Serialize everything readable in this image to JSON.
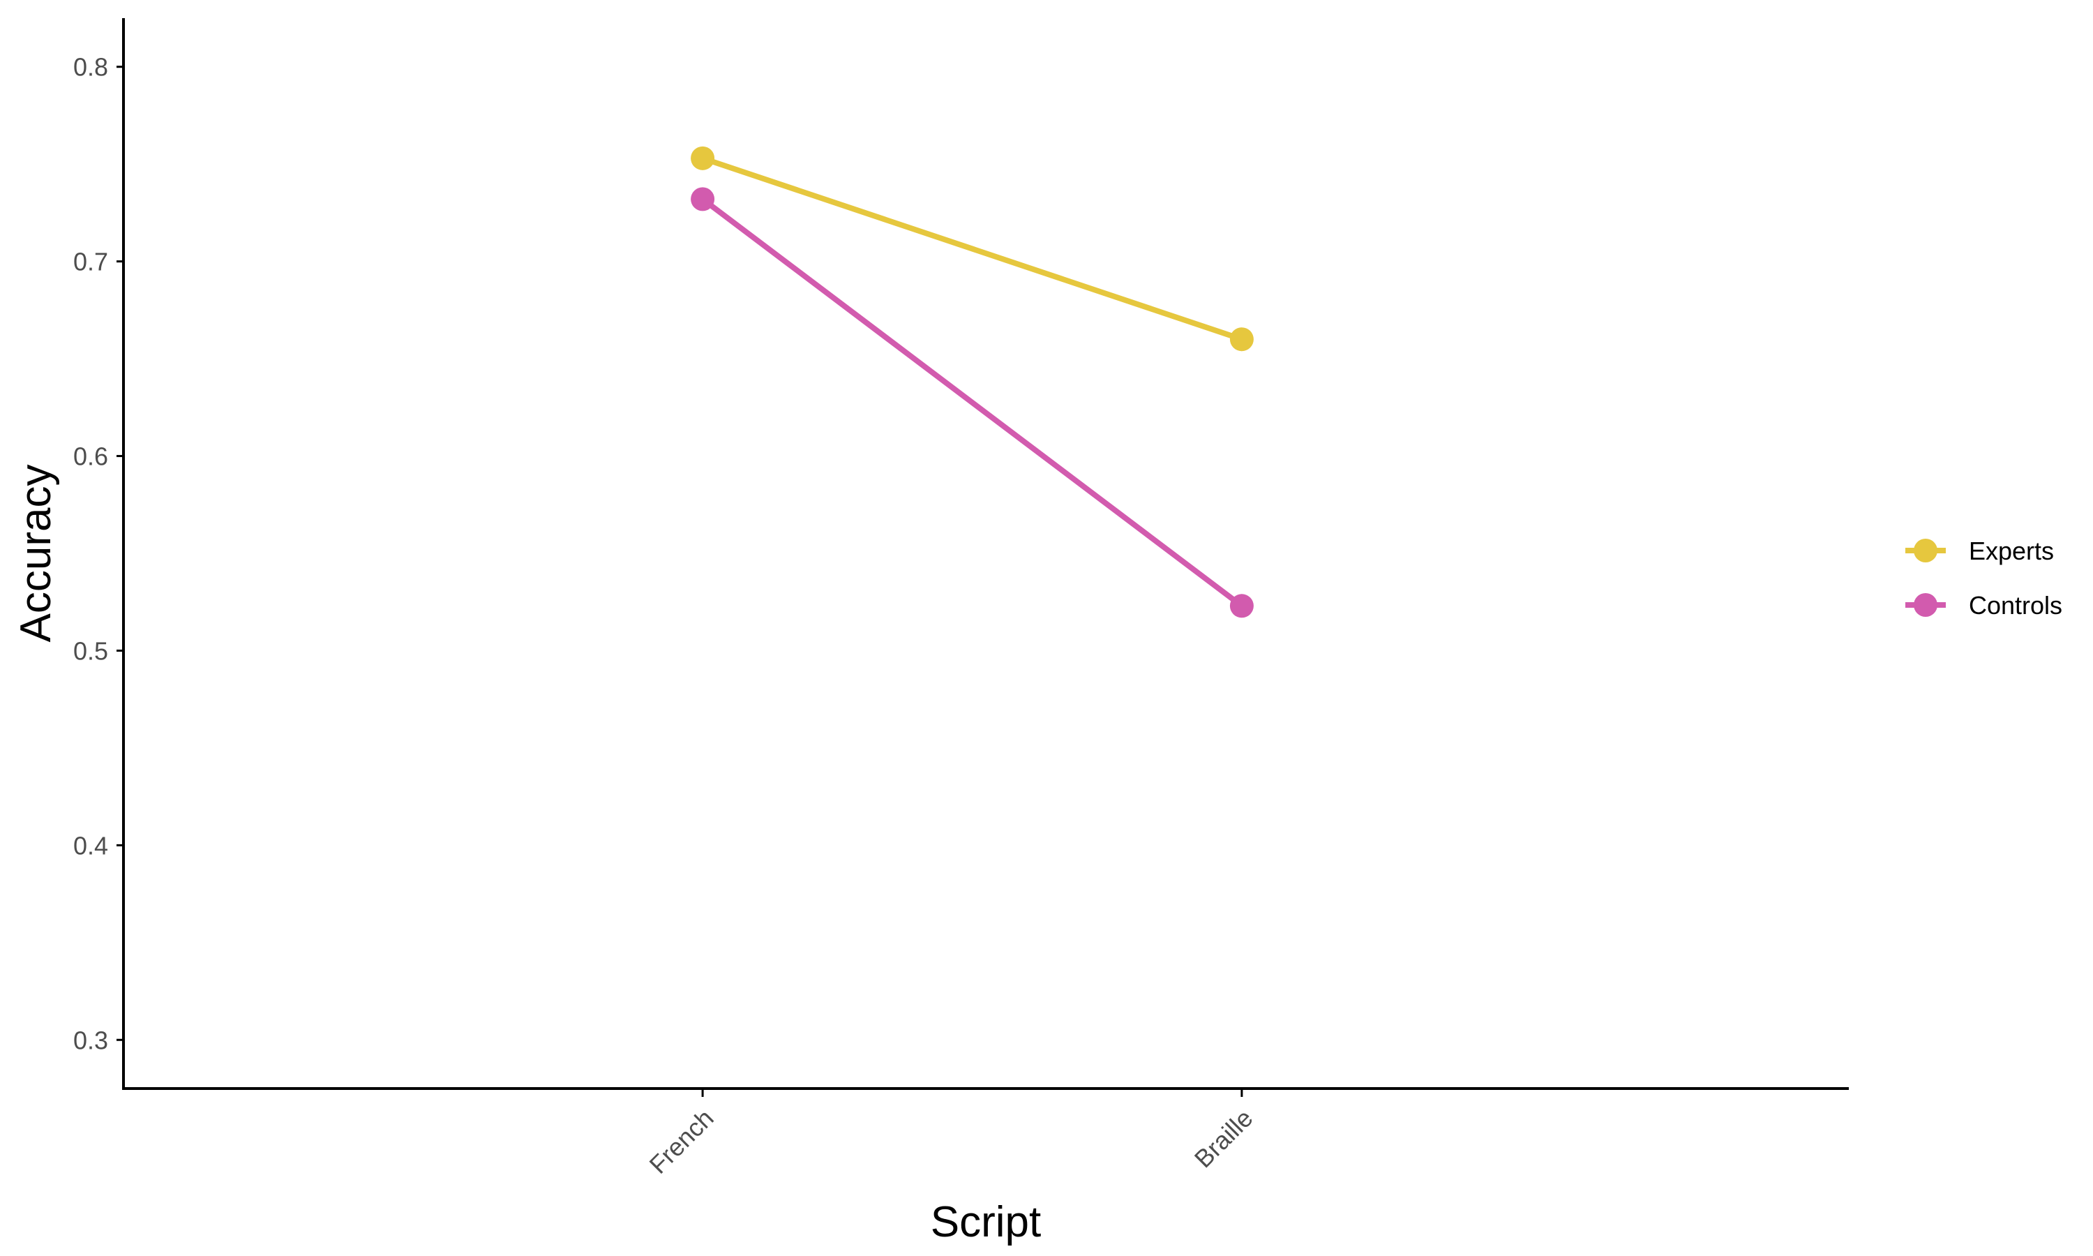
{
  "chart_data": {
    "type": "line",
    "title": "",
    "xlabel": "Script",
    "ylabel": "Accuracy",
    "categories": [
      "French",
      "Braille"
    ],
    "ylim": [
      0.275,
      0.825
    ],
    "yticks": [
      0.3,
      0.4,
      0.5,
      0.6,
      0.7,
      0.8
    ],
    "ytick_labels": [
      "0.3",
      "0.4",
      "0.5",
      "0.6",
      "0.7",
      "0.8"
    ],
    "grid": false,
    "legend_position": "right",
    "series": [
      {
        "name": "Experts",
        "color": "#E6C73E",
        "values": [
          0.753,
          0.66
        ]
      },
      {
        "name": "Controls",
        "color": "#D25BAE",
        "values": [
          0.732,
          0.523
        ]
      }
    ]
  }
}
